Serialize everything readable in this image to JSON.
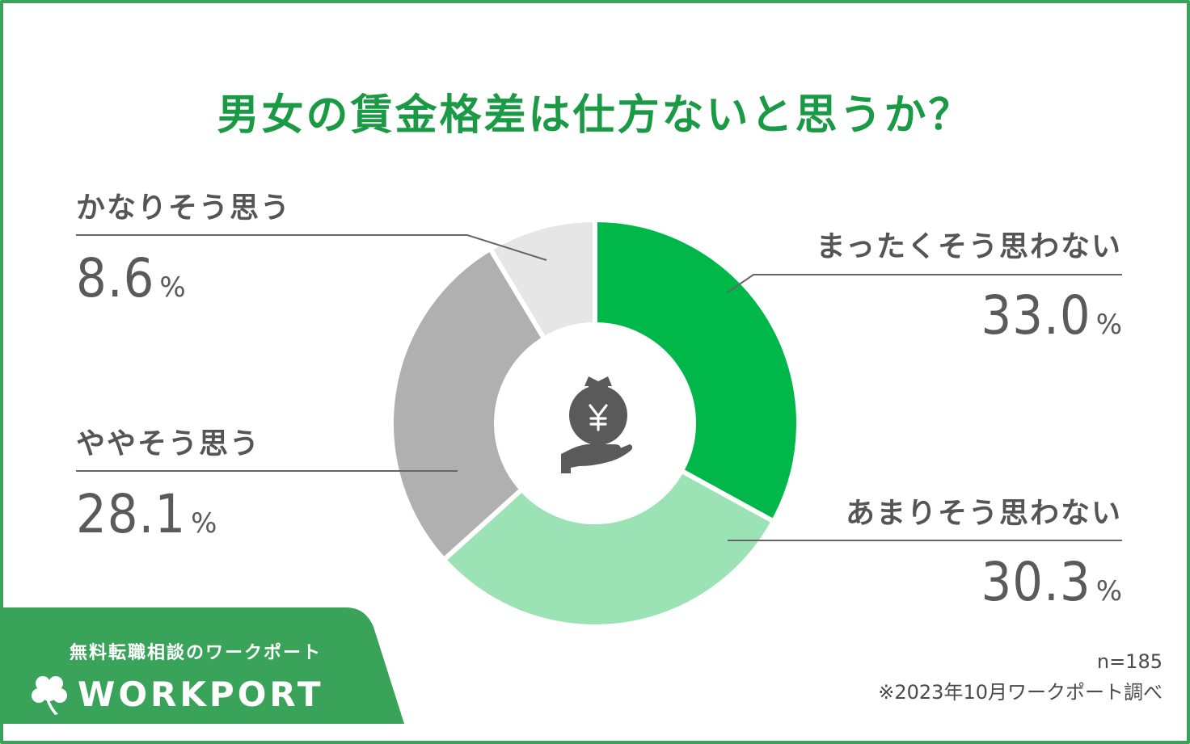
{
  "title": "男女の賃金格差は仕方ないと思うか？",
  "chart_data": {
    "type": "pie",
    "title": "男女の賃金格差は仕方ないと思うか？",
    "unit": "%",
    "slices": [
      {
        "label": "まったくそう思わない",
        "value": 33.0,
        "value_text": "33.0",
        "color": "#00b84a"
      },
      {
        "label": "あまりそう思わない",
        "value": 30.3,
        "value_text": "30.3",
        "color": "#9be3b5"
      },
      {
        "label": "ややそう思う",
        "value": 28.1,
        "value_text": "28.1",
        "color": "#b0b0b0"
      },
      {
        "label": "かなりそう思う",
        "value": 8.6,
        "value_text": "8.6",
        "color": "#e6e6e6"
      }
    ],
    "center_icon": "money-bag-hand-yen-icon"
  },
  "percent_symbol": "%",
  "colors": {
    "title": "#1a9a45",
    "frame": "#3aa35a",
    "brand_panel": "#3aa35a",
    "text": "#555555",
    "icon": "#5a5a5a"
  },
  "footer": {
    "sample_size": "n=185",
    "source": "※2023年10月ワークポート調べ"
  },
  "brand": {
    "tagline": "無料転職相談のワークポート",
    "logo_text": "WORKPORT",
    "logo_icon": "clover-icon"
  }
}
